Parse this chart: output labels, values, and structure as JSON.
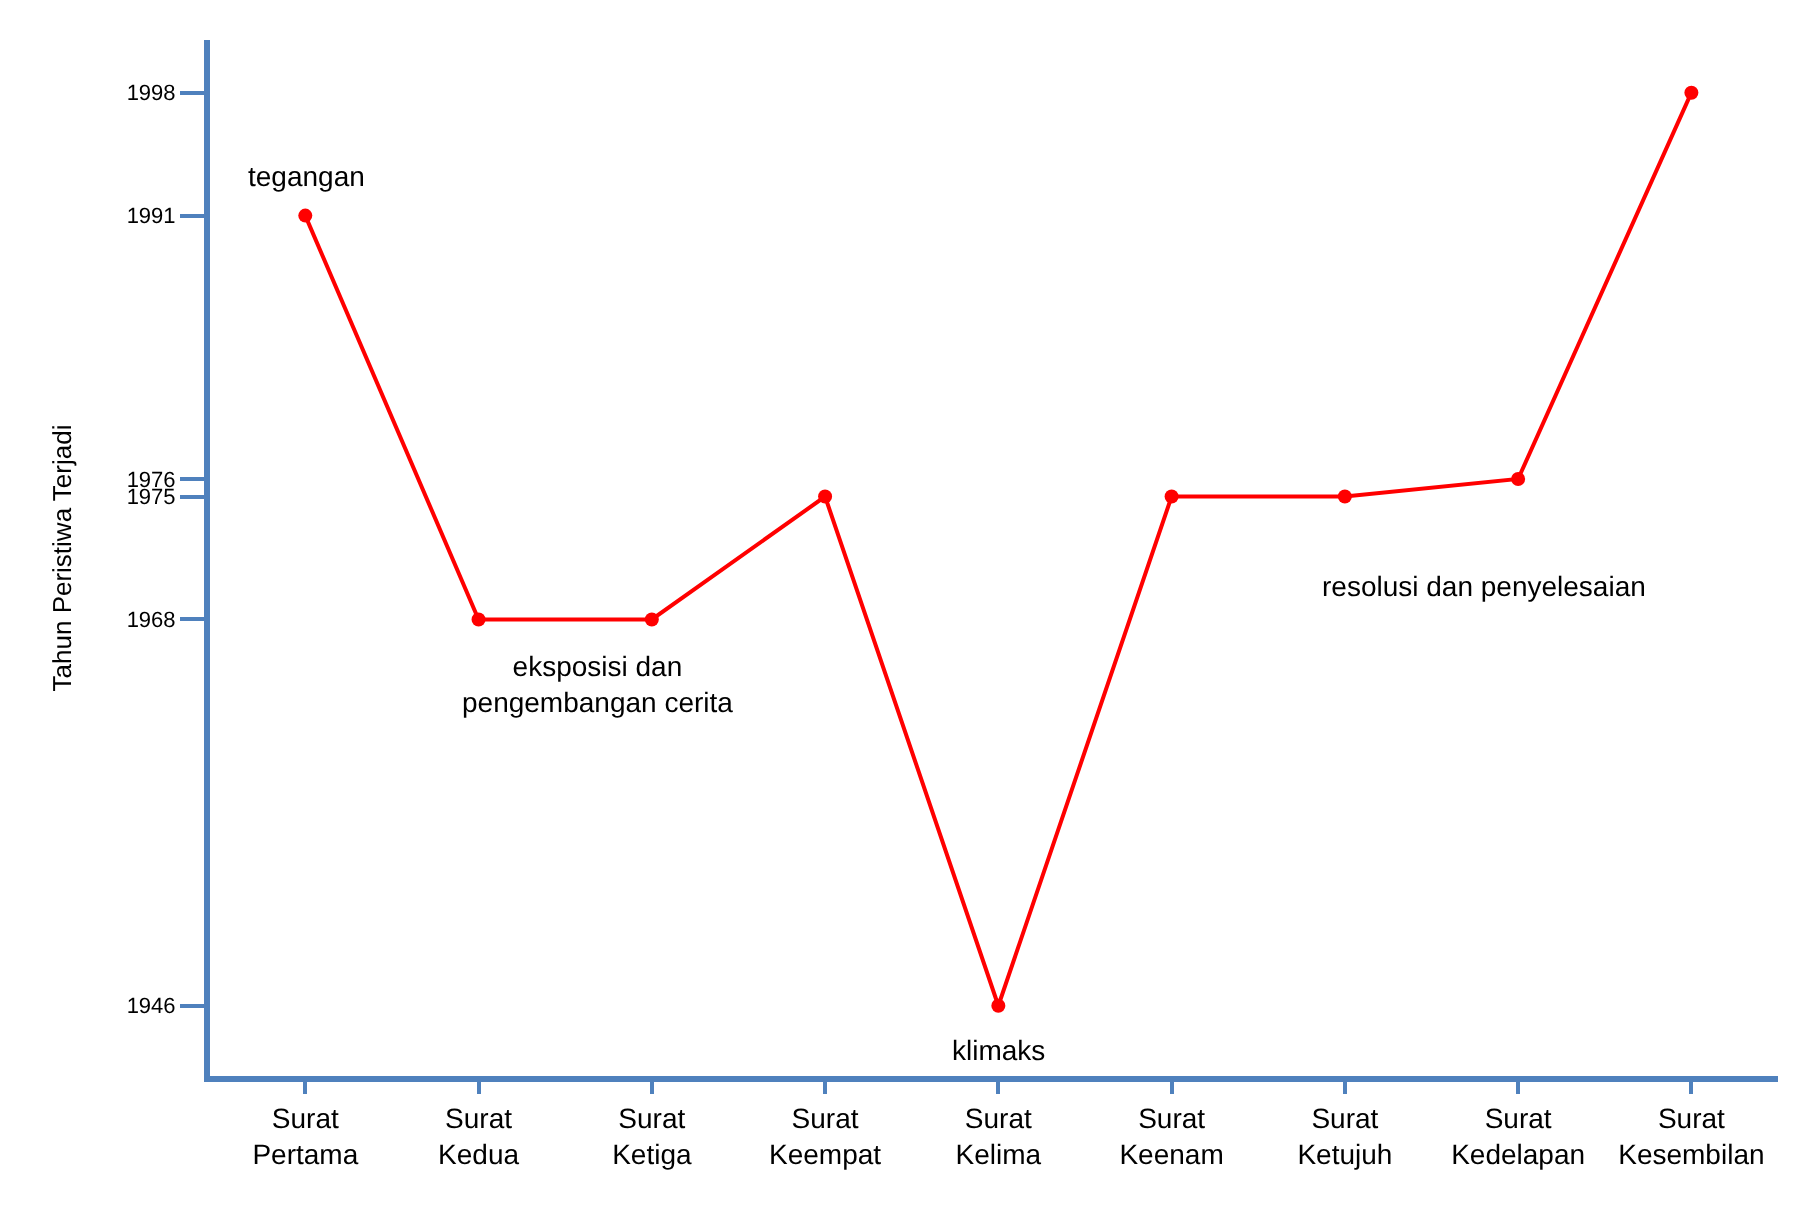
{
  "chart_data": {
    "type": "line",
    "ylabel": "Tahun Peristiwa Terjadi",
    "categories": [
      "Surat Pertama",
      "Surat Kedua",
      "Surat Ketiga",
      "Surat Keempat",
      "Surat Kelima",
      "Surat Keenam",
      "Surat Ketujuh",
      "Surat Kedelapan",
      "Surat Kesembilan"
    ],
    "series": [
      {
        "color": "#ff0000",
        "values": [
          1991,
          1968,
          1968,
          1975,
          1946,
          1975,
          1975,
          1976,
          1998
        ]
      }
    ],
    "ylim": [
      1942,
      2001
    ],
    "yticks": [
      1946,
      1968,
      1975,
      1976,
      1991,
      1998
    ],
    "marker": "circle",
    "line_style": "solid",
    "annotations": [
      {
        "text": "tegangan",
        "x": "Surat Pertama",
        "y": 1991
      },
      {
        "text": "eksposisi dan pengembangan cerita",
        "x": "Surat Kedua",
        "y": 1968
      },
      {
        "text": "klimaks",
        "x": "Surat Kelima",
        "y": 1946
      },
      {
        "text": "resolusi dan penyelesaian",
        "x": "Surat Ketujuh",
        "y": 1975
      }
    ]
  }
}
